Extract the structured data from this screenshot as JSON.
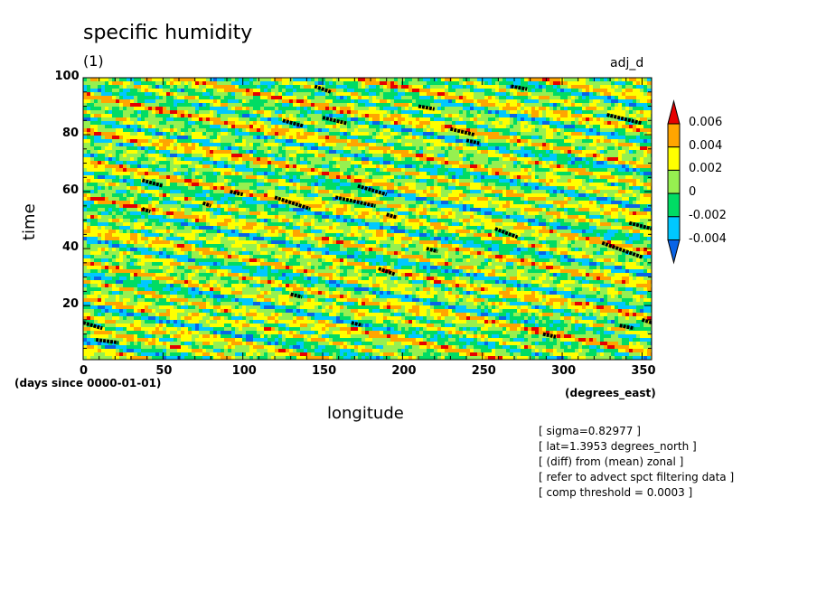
{
  "chart_data": {
    "type": "heatmap",
    "title": "specific humidity",
    "units_label": "(1)",
    "variable_name": "adj_d",
    "xlabel": "longitude",
    "xunits": "(degrees_east)",
    "ylabel": "time",
    "yunits": "(days since 0000-01-01)",
    "xlim": [
      0,
      356
    ],
    "ylim": [
      1,
      100
    ],
    "x_ticks": [
      0,
      50,
      100,
      150,
      200,
      250,
      300,
      350
    ],
    "x_tick_labels": [
      "0",
      "50",
      "100",
      "150",
      "200",
      "250",
      "300",
      "350"
    ],
    "y_ticks": [
      20,
      40,
      60,
      80,
      100
    ],
    "y_tick_labels": [
      "20",
      "40",
      "60",
      "80",
      "100"
    ],
    "colorbar": {
      "levels": [
        "0.006",
        "0.004",
        "0.002",
        "0",
        "-0.002",
        "-0.004"
      ],
      "colors": [
        "#0a64e6",
        "#00c8ff",
        "#00dc64",
        "#96f050",
        "#ffff00",
        "#ffa500",
        "#e60000"
      ],
      "extend": "both"
    },
    "pattern": "filled contours of zonal anomaly, bands tilted westward with time",
    "threshold_segments": [
      {
        "x": [
          0,
          12
        ],
        "y": [
          14,
          12
        ]
      },
      {
        "x": [
          8,
          22
        ],
        "y": [
          8,
          7
        ]
      },
      {
        "x": [
          37,
          50
        ],
        "y": [
          64,
          62
        ]
      },
      {
        "x": [
          37,
          42
        ],
        "y": [
          54,
          53
        ]
      },
      {
        "x": [
          75,
          80
        ],
        "y": [
          56,
          55
        ]
      },
      {
        "x": [
          92,
          100
        ],
        "y": [
          60,
          59
        ]
      },
      {
        "x": [
          120,
          142
        ],
        "y": [
          58,
          54
        ]
      },
      {
        "x": [
          125,
          138
        ],
        "y": [
          85,
          83
        ]
      },
      {
        "x": [
          150,
          165
        ],
        "y": [
          86,
          84
        ]
      },
      {
        "x": [
          145,
          155
        ],
        "y": [
          97,
          95
        ]
      },
      {
        "x": [
          158,
          183
        ],
        "y": [
          58,
          55
        ]
      },
      {
        "x": [
          172,
          190
        ],
        "y": [
          62,
          59
        ]
      },
      {
        "x": [
          190,
          196
        ],
        "y": [
          52,
          51
        ]
      },
      {
        "x": [
          185,
          195
        ],
        "y": [
          33,
          31
        ]
      },
      {
        "x": [
          130,
          137
        ],
        "y": [
          24,
          23
        ]
      },
      {
        "x": [
          168,
          175
        ],
        "y": [
          14,
          13
        ]
      },
      {
        "x": [
          210,
          220
        ],
        "y": [
          90,
          89
        ]
      },
      {
        "x": [
          215,
          222
        ],
        "y": [
          40,
          39
        ]
      },
      {
        "x": [
          230,
          245
        ],
        "y": [
          82,
          80
        ]
      },
      {
        "x": [
          240,
          248
        ],
        "y": [
          78,
          77
        ]
      },
      {
        "x": [
          258,
          272
        ],
        "y": [
          47,
          44
        ]
      },
      {
        "x": [
          268,
          278
        ],
        "y": [
          97,
          96
        ]
      },
      {
        "x": [
          288,
          296
        ],
        "y": [
          10,
          9
        ]
      },
      {
        "x": [
          325,
          350
        ],
        "y": [
          42,
          37
        ]
      },
      {
        "x": [
          328,
          350
        ],
        "y": [
          87,
          84
        ]
      },
      {
        "x": [
          342,
          356
        ],
        "y": [
          49,
          47
        ]
      },
      {
        "x": [
          336,
          345
        ],
        "y": [
          13,
          12
        ]
      },
      {
        "x": [
          350,
          356
        ],
        "y": [
          15,
          14
        ]
      }
    ]
  },
  "annotations": [
    "[ sigma=0.82977 ]",
    "[ lat=1.3953 degrees_north ]",
    "[ (diff) from (mean) zonal ]",
    "[ refer to advect spct filtering data ]",
    "[ comp threshold = 0.0003 ]"
  ]
}
